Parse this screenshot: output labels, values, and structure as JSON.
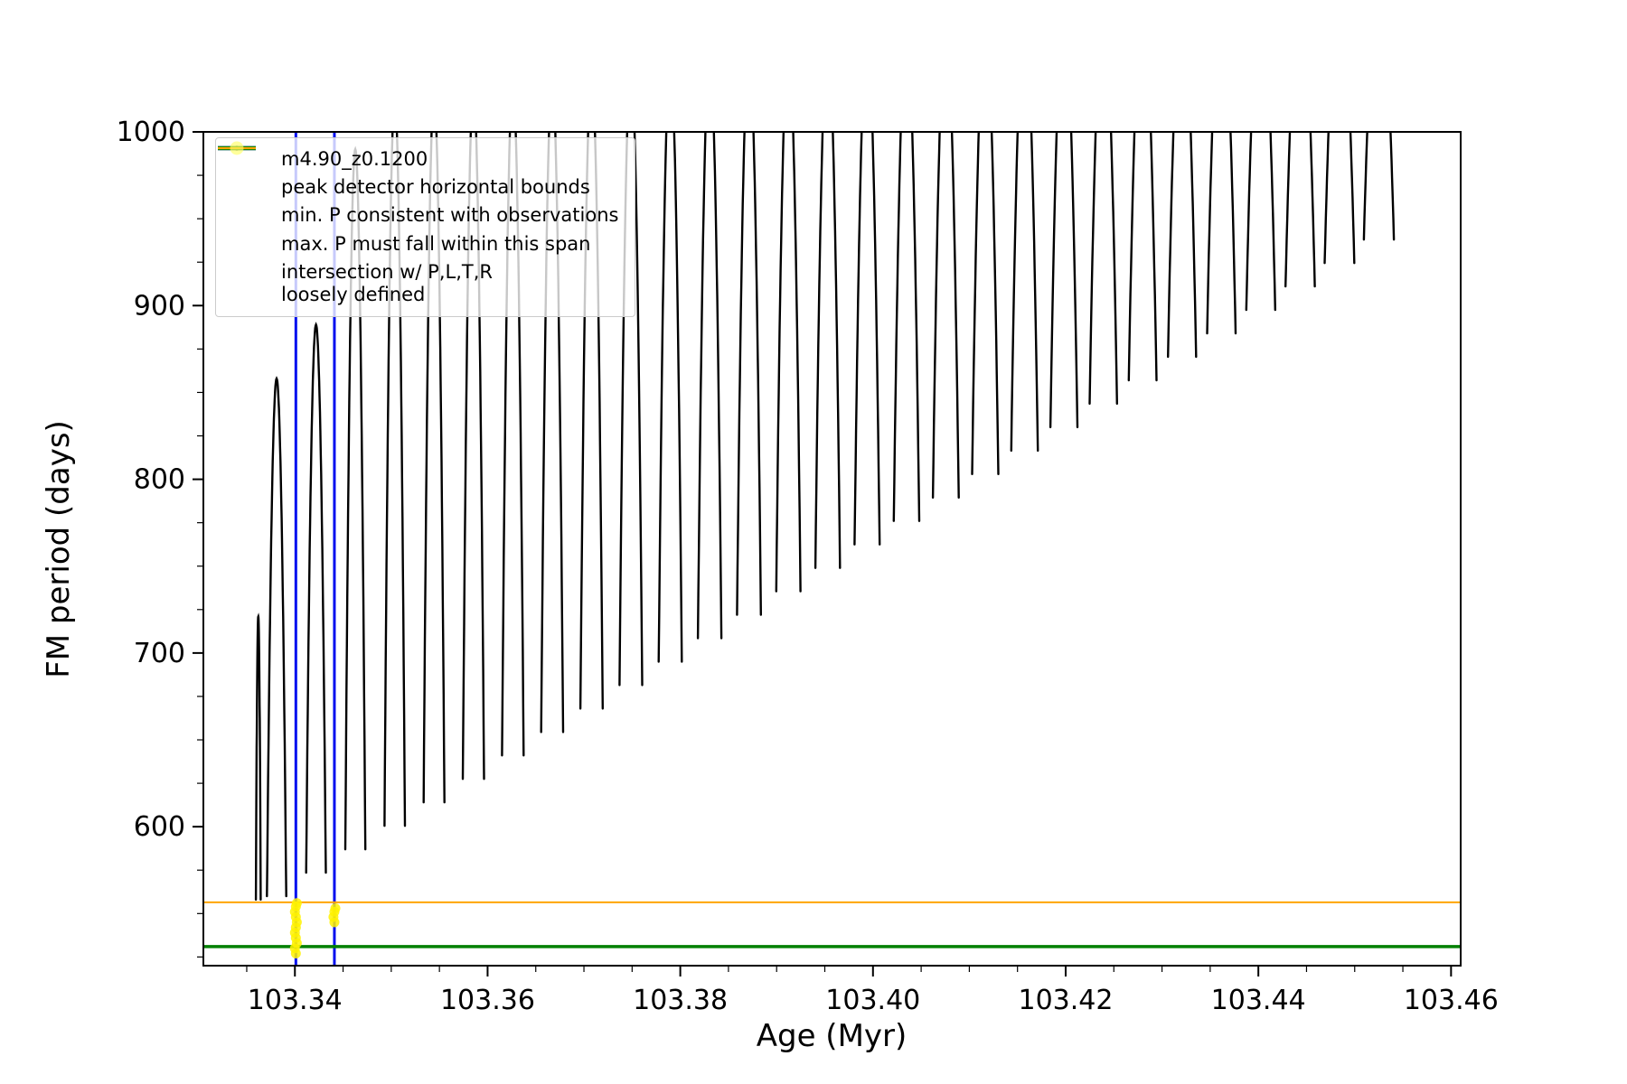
{
  "chart_data": {
    "type": "line",
    "title": "",
    "xlabel": "Age (Myr)",
    "ylabel": "FM period (days)",
    "xlim": [
      103.3305,
      103.461
    ],
    "ylim": [
      520,
      1000
    ],
    "xticks": [
      103.34,
      103.36,
      103.38,
      103.4,
      103.42,
      103.44,
      103.46
    ],
    "yticks": [
      600,
      700,
      800,
      900,
      1000
    ],
    "x_minor_step": 0.005,
    "y_minor_step": 25,
    "grid": false,
    "legend_position": "upper left",
    "series": [
      {
        "name": "m4.90_z0.1200",
        "color": "#000000",
        "style": "narrow-arches",
        "arches": [
          {
            "x": 103.3362,
            "base": 558,
            "peak": 721,
            "w": 0.00025
          },
          {
            "x": 103.3381,
            "base": 560,
            "peak": 858,
            "w": 0.001
          },
          {
            "x": 103.34219,
            "base": 573.5,
            "peak": 889,
            "w": 0.00102
          },
          {
            "x": 103.34627,
            "base": 587,
            "peak": 990,
            "w": 0.00104
          },
          {
            "x": 103.35036,
            "base": 600.5,
            "peak": 1019,
            "w": 0.00106
          },
          {
            "x": 103.35444,
            "base": 614,
            "peak": 1022,
            "w": 0.00108
          },
          {
            "x": 103.35853,
            "base": 627.5,
            "peak": 1025,
            "w": 0.0011
          },
          {
            "x": 103.36262,
            "base": 641,
            "peak": 1028,
            "w": 0.00112
          },
          {
            "x": 103.3667,
            "base": 654.5,
            "peak": 1031,
            "w": 0.00114
          },
          {
            "x": 103.37079,
            "base": 668,
            "peak": 1034,
            "w": 0.00116
          },
          {
            "x": 103.37487,
            "base": 681.5,
            "peak": 1037,
            "w": 0.00118
          },
          {
            "x": 103.37896,
            "base": 695,
            "peak": 1040,
            "w": 0.0012
          },
          {
            "x": 103.38305,
            "base": 708.5,
            "peak": 1043,
            "w": 0.00122
          },
          {
            "x": 103.38713,
            "base": 722,
            "peak": 1046,
            "w": 0.00124
          },
          {
            "x": 103.39122,
            "base": 735.5,
            "peak": 1049,
            "w": 0.00126
          },
          {
            "x": 103.3953,
            "base": 749,
            "peak": 1052,
            "w": 0.00128
          },
          {
            "x": 103.39939,
            "base": 762.5,
            "peak": 1055,
            "w": 0.0013
          },
          {
            "x": 103.40348,
            "base": 776,
            "peak": 1058,
            "w": 0.00132
          },
          {
            "x": 103.40756,
            "base": 789.5,
            "peak": 1061,
            "w": 0.00134
          },
          {
            "x": 103.41165,
            "base": 803,
            "peak": 1064,
            "w": 0.00136
          },
          {
            "x": 103.41573,
            "base": 816.5,
            "peak": 1067,
            "w": 0.00138
          },
          {
            "x": 103.41982,
            "base": 830,
            "peak": 1070,
            "w": 0.0014
          },
          {
            "x": 103.42391,
            "base": 843.5,
            "peak": 1073,
            "w": 0.00142
          },
          {
            "x": 103.42799,
            "base": 857,
            "peak": 1076,
            "w": 0.00144
          },
          {
            "x": 103.43208,
            "base": 870.5,
            "peak": 1079,
            "w": 0.00146
          },
          {
            "x": 103.43616,
            "base": 884,
            "peak": 1082,
            "w": 0.00148
          },
          {
            "x": 103.44025,
            "base": 897.5,
            "peak": 1085,
            "w": 0.0015
          },
          {
            "x": 103.44434,
            "base": 911,
            "peak": 1088,
            "w": 0.00152
          },
          {
            "x": 103.44842,
            "base": 924.5,
            "peak": 1091,
            "w": 0.00154
          },
          {
            "x": 103.45251,
            "base": 938,
            "peak": 1094,
            "w": 0.00156
          }
        ]
      }
    ],
    "vlines": {
      "label": "peak detector horizontal bounds",
      "color": "#0010ee",
      "x": [
        103.3401,
        103.3441
      ],
      "width": 3
    },
    "hlines": [
      {
        "label": "max. P must fall within this span",
        "color": "#ffa500",
        "y": 556.5,
        "width": 2
      },
      {
        "label": "min. P consistent with observations",
        "color": "#008000",
        "y": 531,
        "width": 3.5
      }
    ],
    "scatter": {
      "label": "intersection w/ P,L,T,R loosely defined",
      "color": "#fff200",
      "alpha": 0.85,
      "size": 11,
      "points": [
        [
          103.3401,
          527
        ],
        [
          103.34,
          530
        ],
        [
          103.3402,
          533
        ],
        [
          103.3401,
          536
        ],
        [
          103.34,
          539
        ],
        [
          103.3401,
          542
        ],
        [
          103.3402,
          545
        ],
        [
          103.3401,
          548
        ],
        [
          103.34,
          551
        ],
        [
          103.3401,
          554
        ],
        [
          103.3402,
          556
        ],
        [
          103.3441,
          545
        ],
        [
          103.344,
          548
        ],
        [
          103.3441,
          551
        ],
        [
          103.3442,
          553
        ]
      ]
    }
  },
  "legend": {
    "items": [
      {
        "label": "m4.90_z0.1200",
        "swatch": "line-marker",
        "color": "#000000"
      },
      {
        "label": "peak detector horizontal bounds",
        "swatch": "thick-line",
        "color": "#0010ee"
      },
      {
        "label": "min. P consistent with observations",
        "swatch": "thick-line",
        "color": "#008000"
      },
      {
        "label": "max. P must fall within this span",
        "swatch": "line",
        "color": "#ffa500"
      },
      {
        "label": "intersection w/ P,L,T,R",
        "label2": "loosely defined",
        "swatch": "dot",
        "color": "#ffff66"
      }
    ]
  }
}
